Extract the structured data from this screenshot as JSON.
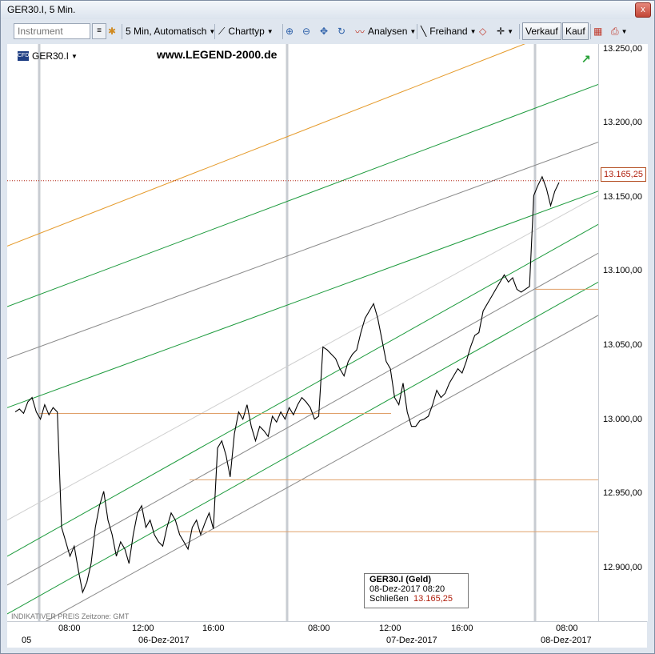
{
  "window": {
    "title": "GER30.I, 5 Min.",
    "close_glyph": "x"
  },
  "toolbar": {
    "instrument_placeholder": "Instrument",
    "interval_label": "5 Min,  Automatisch",
    "charttype_label": "Charttyp",
    "analysen_label": "Analysen",
    "freihand_label": "Freihand",
    "verkauf_label": "Verkauf",
    "kauf_label": "Kauf"
  },
  "chart": {
    "symbol": "GER30.I",
    "website": "www.LEGEND-2000.de",
    "current_price": "13.165,25",
    "footnote": "INDIKATIVER PREIS   Zeitzone: GMT",
    "y_ticks": [
      "13.250,00",
      "13.200,00",
      "13.150,00",
      "13.100,00",
      "13.050,00",
      "13.000,00",
      "12.950,00",
      "12.900,00"
    ],
    "x_ticks": [
      "08:00",
      "12:00",
      "16:00",
      "08:00",
      "12:00",
      "16:00",
      "08:00"
    ],
    "x_days": [
      "05",
      "06-Dez-2017",
      "07-Dez-2017",
      "08-Dez-2017"
    ],
    "colors": {
      "price": "#000000",
      "channel_green": "#1c9a3c",
      "channel_gray": "#8a8a8a",
      "channel_orange": "#e59a2a",
      "level": "#e0a06a",
      "current_line": "#b0200e"
    }
  },
  "infobox": {
    "title": "GER30.I (Geld)",
    "datetime": "08-Dez-2017 08:20",
    "close_label": "Schließen",
    "close_value": "13.165,25"
  },
  "chart_data": {
    "type": "line",
    "ylim": [
      12860,
      13260
    ],
    "x_labels": [
      "08:00",
      "12:00",
      "16:00",
      "08:00",
      "12:00",
      "16:00",
      "08:00"
    ],
    "series": [
      {
        "values": [
          13005,
          13007,
          13004,
          13012,
          13015,
          13005,
          13000,
          13010,
          13003,
          13008,
          13005,
          12925,
          12915,
          12905,
          12912,
          12895,
          12880,
          12887,
          12900,
          12925,
          12940,
          12950,
          12930,
          12920,
          12905,
          12915,
          12910,
          12900,
          12920,
          12935,
          12940,
          12925,
          12930,
          12920,
          12915,
          12912,
          12925,
          12935,
          12930,
          12920,
          12915,
          12910,
          12925,
          12930,
          12920,
          12928,
          12935,
          12924,
          12980,
          12985,
          12975,
          12960,
          12990,
          13005,
          13000,
          13010,
          12995,
          12985,
          12995,
          12992,
          12988,
          13002,
          12998,
          13005,
          13000,
          13008,
          13003,
          13010,
          13015,
          13012,
          13008,
          13000,
          13002,
          13050,
          13048,
          13045,
          13042,
          13035,
          13030,
          13040,
          13045,
          13048,
          13060,
          13070,
          13075,
          13080,
          13070,
          13055,
          13040,
          13035,
          13015,
          13010,
          13025,
          13005,
          12995,
          12995,
          12999,
          13000,
          13002,
          13010,
          13020,
          13015,
          13018,
          13025,
          13030,
          13035,
          13032,
          13040,
          13050,
          13058,
          13060,
          13075,
          13080,
          13085,
          13090,
          13095,
          13100,
          13095,
          13098,
          13090,
          13088,
          13090,
          13092,
          13155,
          13162,
          13168,
          13160,
          13148,
          13158,
          13164
        ]
      }
    ]
  }
}
